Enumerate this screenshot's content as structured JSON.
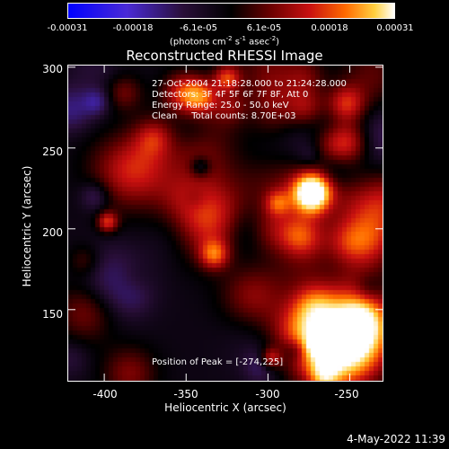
{
  "colorbar": {
    "ticks": [
      "-0.00031",
      "-0.00018",
      "-6.1e-05",
      "6.1e-05",
      "0.00018",
      "0.00031"
    ],
    "unit_prefix": "(photons cm",
    "unit_exp1": "-2",
    "unit_mid": " s",
    "unit_exp2": "-1",
    "unit_asec": " asec",
    "unit_exp3": "-2",
    "unit_close": ")"
  },
  "title": "Reconstructed RHESSI Image",
  "info": {
    "time": "27-Oct-2004 21:18:28.000 to 21:24:28.000",
    "detectors": "Detectors: 3F 4F 5F 6F 7F 8F, Att 0",
    "energy": "Energy Range: 25.0 - 50.0 keV",
    "clean": "Clean     Total counts: 8.70E+03"
  },
  "peak_label": "Position of Peak = [-274,225]",
  "datestamp": "4-May-2022 11:39",
  "chart_data": {
    "type": "heatmap",
    "title": "Reconstructed RHESSI Image",
    "xlabel": "Heliocentric X (arcsec)",
    "ylabel": "Heliocentric Y (arcsec)",
    "xlim": [
      -422,
      -230
    ],
    "ylim": [
      106,
      301
    ],
    "x_ticks": [
      -400,
      -350,
      -300,
      -250
    ],
    "y_ticks": [
      150,
      200,
      250,
      300
    ],
    "x_tick_labels": [
      "-400",
      "-350",
      "-300",
      "-250"
    ],
    "y_tick_labels": [
      "150",
      "200",
      "250",
      "300"
    ],
    "colorbar_range": [
      -0.00031,
      0.00031
    ],
    "peak_position": [
      -274,
      225
    ],
    "colormap": [
      "#0000ff",
      "#4a2ad6",
      "#3a1e8a",
      "#2a0f3a",
      "#000000",
      "#6a0000",
      "#c81010",
      "#ff6a00",
      "#ffd040",
      "#ffffff"
    ]
  }
}
